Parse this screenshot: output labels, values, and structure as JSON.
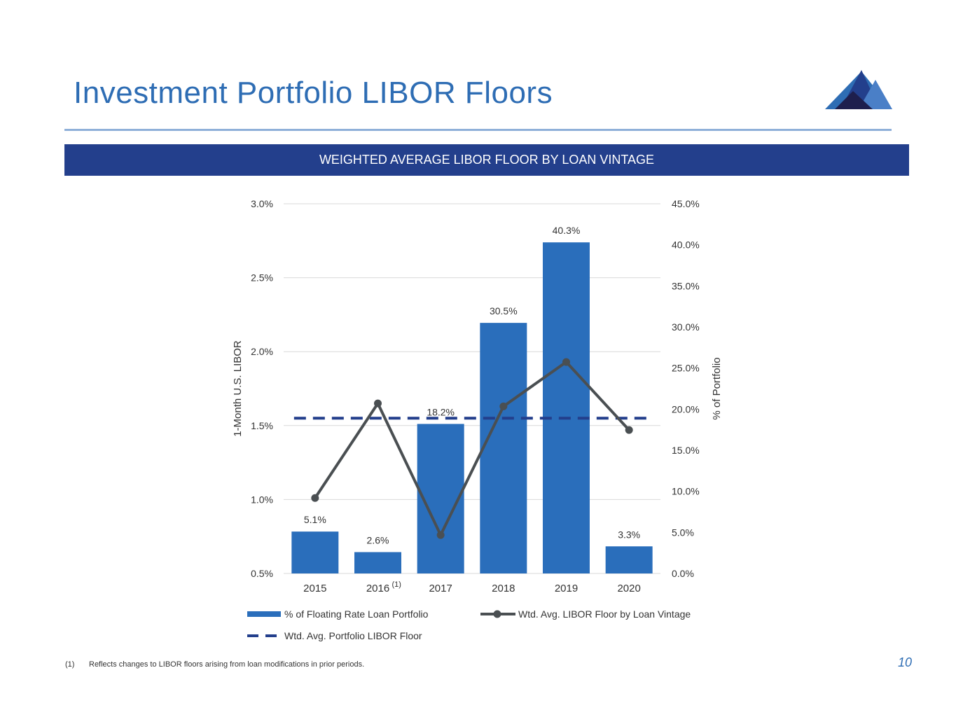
{
  "page": {
    "title": "Investment Portfolio LIBOR Floors",
    "banner": "WEIGHTED AVERAGE LIBOR FLOOR BY LOAN VINTAGE",
    "footnote_marker": "(1)",
    "footnote_text": "Reflects changes to LIBOR floors arising from loan modifications in prior periods.",
    "page_number": "10"
  },
  "colors": {
    "title": "#2e6db4",
    "banner": "#233f8c",
    "bar": "#2a6ebb",
    "line": "#4a4f52",
    "dashed": "#233f8c"
  },
  "chart_data": {
    "type": "bar",
    "categories": [
      "2015",
      "2016",
      "2017",
      "2018",
      "2019",
      "2020"
    ],
    "category_superscripts": [
      "",
      "(1)",
      "",
      "",
      "",
      ""
    ],
    "y_left_label": "1-Month U.S. LIBOR",
    "y_right_label": "% of Portfolio",
    "y_left_ticks": [
      "3.0%",
      "2.5%",
      "2.0%",
      "1.5%",
      "1.0%",
      "0.5%"
    ],
    "y_right_ticks": [
      "45.0%",
      "40.0%",
      "35.0%",
      "30.0%",
      "25.0%",
      "20.0%",
      "15.0%",
      "10.0%",
      "5.0%",
      "0.0%"
    ],
    "ylim_left": [
      0.5,
      3.0
    ],
    "ylim_right": [
      0,
      45
    ],
    "grid": true,
    "legend_position": "bottom",
    "series": [
      {
        "name": "% of Floating Rate Loan Portfolio",
        "type": "bar",
        "axis": "right",
        "values": [
          5.1,
          2.6,
          18.2,
          30.5,
          40.3,
          3.3
        ],
        "labels": [
          "5.1%",
          "2.6%",
          "18.2%",
          "30.5%",
          "40.3%",
          "3.3%"
        ]
      },
      {
        "name": "Wtd. Avg. LIBOR Floor by Loan Vintage",
        "type": "line",
        "axis": "left",
        "values": [
          1.01,
          1.65,
          0.76,
          1.63,
          1.93,
          1.47
        ]
      },
      {
        "name": "Wtd. Avg. Portfolio LIBOR Floor",
        "type": "dashed-line",
        "axis": "left",
        "values": [
          1.55,
          1.55,
          1.55,
          1.55,
          1.55,
          1.55
        ]
      }
    ]
  }
}
